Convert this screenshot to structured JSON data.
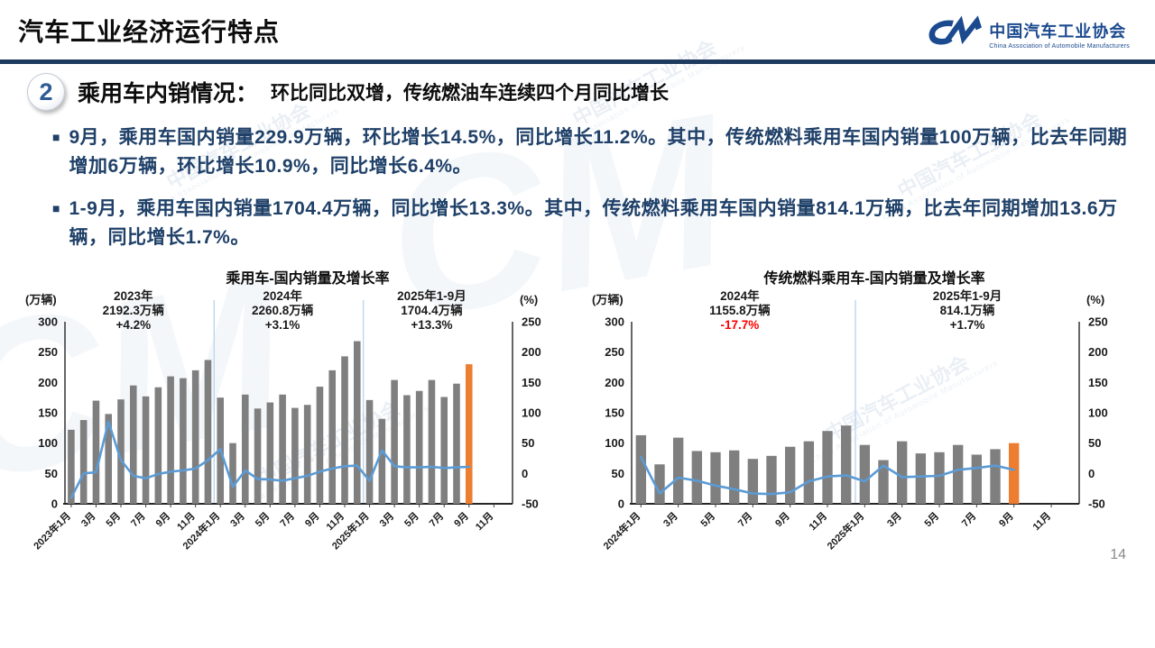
{
  "header": {
    "title": "汽车工业经济运行特点",
    "logo": {
      "mark": "CM",
      "org_cn": "中国汽车工业协会",
      "org_en": "China Association of Automobile Manufacturers"
    }
  },
  "section": {
    "number": "2",
    "heading": "乘用车内销情况：",
    "subheading": "环比同比双增，传统燃油车连续四个月同比增长"
  },
  "bullets": [
    {
      "text": "9月，乘用车国内销量229.9万辆，环比增长14.5%，同比增长11.2%。其中，传统燃料乘用车国内销量100万辆，比去年同期增加6万辆，环比增长10.9%，同比增长6.4%。"
    },
    {
      "text": "1-9月，乘用车国内销量1704.4万辆，同比增长13.3%。其中，传统燃料乘用车国内销量814.1万辆，比去年同期增加13.6万辆，同比增长1.7%。"
    }
  ],
  "watermark": {
    "text": "中国汽车工业协会",
    "subtext": "China Association of Automobile Manufacturers",
    "mark": "CM"
  },
  "page_number": "14",
  "chart_data": [
    {
      "type": "bar+line",
      "title": "乘用车-国内销量及增长率",
      "unit_left": "(万辆)",
      "unit_right": "(%)",
      "ylim_left": [
        0,
        300
      ],
      "ylim_right": [
        -50,
        250
      ],
      "ytick_step": 50,
      "n_slots": 36,
      "x_tick_labels": [
        "2023年1月",
        "3月",
        "5月",
        "7月",
        "9月",
        "11月",
        "2024年1月",
        "3月",
        "5月",
        "7月",
        "9月",
        "11月",
        "2025年1月",
        "3月",
        "5月",
        "7月",
        "9月",
        "11月"
      ],
      "separators": [
        12,
        24
      ],
      "series": [
        {
          "name": "国内销量",
          "type": "bar",
          "axis": "left",
          "color": "#7F7F7F",
          "highlight_last_color": "#ED7D31",
          "values": [
            122,
            138,
            170,
            148,
            172,
            195,
            177,
            192,
            210,
            207,
            220,
            237,
            175,
            100,
            180,
            157,
            167,
            180,
            158,
            163,
            193,
            220,
            243,
            268,
            171,
            140,
            204,
            179,
            186,
            204,
            176,
            198,
            230
          ]
        },
        {
          "name": "增长率",
          "type": "line",
          "axis": "right",
          "color": "#5B9BD5",
          "values": [
            -40,
            0,
            2,
            85,
            22,
            -4,
            -8,
            -1,
            3,
            5,
            8,
            22,
            40,
            -22,
            5,
            -9,
            -10,
            -12,
            -8,
            -4,
            3,
            8,
            12,
            13,
            -12,
            38,
            12,
            10,
            10,
            11,
            9,
            10,
            11
          ]
        }
      ],
      "annotations": [
        {
          "center_slot": 5.5,
          "lines": [
            {
              "text": "2023年"
            },
            {
              "text": "2192.3万辆"
            },
            {
              "text": "+4.2%"
            }
          ]
        },
        {
          "center_slot": 17.5,
          "lines": [
            {
              "text": "2024年"
            },
            {
              "text": "2260.8万辆"
            },
            {
              "text": "+3.1%"
            }
          ]
        },
        {
          "center_slot": 29.5,
          "lines": [
            {
              "text": "2025年1-9月"
            },
            {
              "text": "1704.4万辆"
            },
            {
              "text": "+13.3%"
            }
          ]
        }
      ]
    },
    {
      "type": "bar+line",
      "title": "传统燃料乘用车-国内销量及增长率",
      "unit_left": "(万辆)",
      "unit_right": "(%)",
      "ylim_left": [
        0,
        300
      ],
      "ylim_right": [
        -50,
        250
      ],
      "ytick_step": 50,
      "n_slots": 24,
      "x_tick_labels": [
        "2024年1月",
        "3月",
        "5月",
        "7月",
        "9月",
        "11月",
        "2025年1月",
        "3月",
        "5月",
        "7月",
        "9月",
        "11月"
      ],
      "separators": [
        12
      ],
      "series": [
        {
          "name": "国内销量",
          "type": "bar",
          "axis": "left",
          "color": "#7F7F7F",
          "highlight_last_color": "#ED7D31",
          "values": [
            113,
            65,
            109,
            87,
            85,
            88,
            74,
            79,
            94,
            103,
            120,
            129,
            97,
            72,
            103,
            83,
            85,
            97,
            81,
            90,
            100
          ]
        },
        {
          "name": "增长率",
          "type": "line",
          "axis": "right",
          "color": "#5B9BD5",
          "values": [
            27,
            -33,
            -7,
            -12,
            -20,
            -26,
            -33,
            -34,
            -31,
            -13,
            -5,
            -3,
            -13,
            13,
            -6,
            -5,
            -4,
            6,
            9,
            13,
            6
          ]
        }
      ],
      "annotations": [
        {
          "center_slot": 5.8,
          "lines": [
            {
              "text": "2024年"
            },
            {
              "text": "1155.8万辆"
            },
            {
              "text": "-17.7%",
              "color": "#FF0000"
            }
          ]
        },
        {
          "center_slot": 18,
          "lines": [
            {
              "text": "2025年1-9月"
            },
            {
              "text": "814.1万辆"
            },
            {
              "text": "+1.7%"
            }
          ]
        }
      ]
    }
  ]
}
